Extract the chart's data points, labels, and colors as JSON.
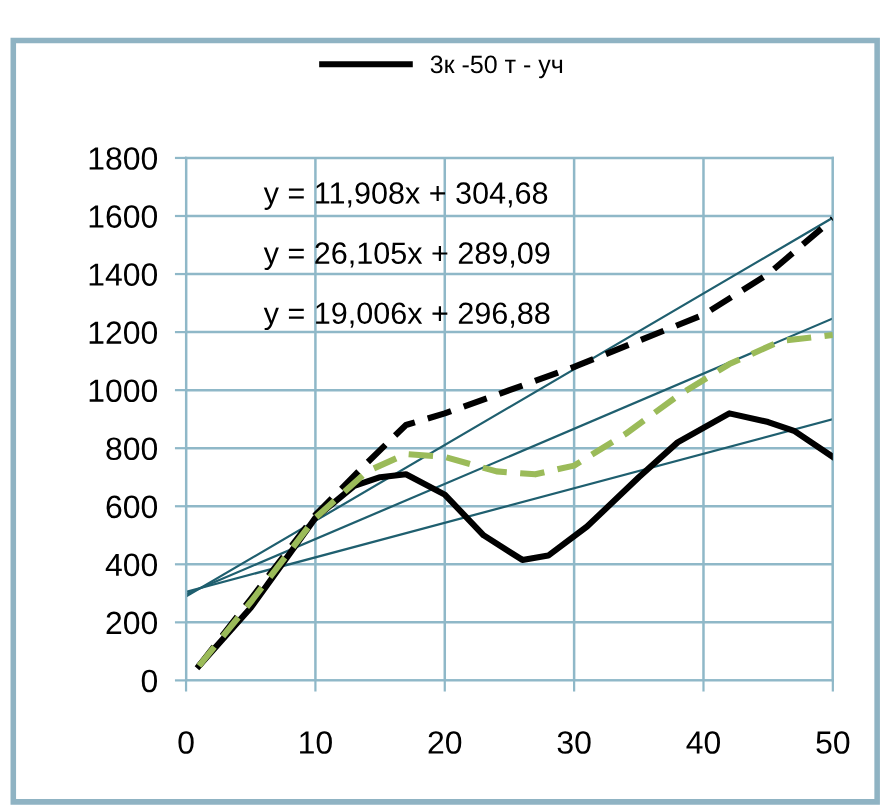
{
  "chart_data": {
    "type": "line",
    "xlim": [
      0,
      50
    ],
    "xticks": [
      0,
      10,
      20,
      30,
      40,
      50
    ],
    "ylim": [
      0,
      1800
    ],
    "yticks": [
      0,
      200,
      400,
      600,
      800,
      1000,
      1200,
      1400,
      1600,
      1800
    ],
    "grid": true,
    "legend": "top",
    "annotations": [
      "y = 11,908x + 304,68",
      "y = 26,105x + 289,09",
      "y = 19,006x + 296,88"
    ],
    "series": [
      {
        "name": "3к -50 т - уч",
        "color": "#000000",
        "line_style": "solid",
        "x": [
          1,
          5,
          10,
          13,
          15,
          17,
          20,
          23,
          26,
          28,
          31,
          35,
          38,
          42,
          45,
          47,
          50
        ],
        "values": [
          50,
          250,
          560,
          670,
          700,
          710,
          640,
          500,
          415,
          430,
          530,
          700,
          820,
          920,
          890,
          860,
          770
        ]
      },
      {
        "color": "#000000",
        "line_style": "dashed",
        "x": [
          1,
          5,
          10,
          14,
          17,
          20,
          25,
          30,
          35,
          40,
          45,
          50
        ],
        "values": [
          50,
          280,
          570,
          750,
          880,
          920,
          1000,
          1080,
          1170,
          1260,
          1400,
          1590
        ]
      },
      {
        "color": "#9bbb59",
        "line_style": "dashed",
        "x": [
          1,
          5,
          10,
          14,
          17,
          20,
          24,
          27,
          30,
          34,
          38,
          42,
          46,
          50
        ],
        "values": [
          50,
          270,
          560,
          720,
          780,
          770,
          720,
          710,
          740,
          850,
          980,
          1090,
          1170,
          1190
        ]
      },
      {
        "color": "#1f5f6f",
        "line_style": "solid",
        "x": [
          0,
          50
        ],
        "values": [
          305,
          900
        ]
      },
      {
        "color": "#1f5f6f",
        "line_style": "solid",
        "x": [
          0,
          50
        ],
        "values": [
          289,
          1594
        ]
      },
      {
        "color": "#1f5f6f",
        "line_style": "solid",
        "x": [
          0,
          50
        ],
        "values": [
          297,
          1247
        ]
      }
    ]
  }
}
